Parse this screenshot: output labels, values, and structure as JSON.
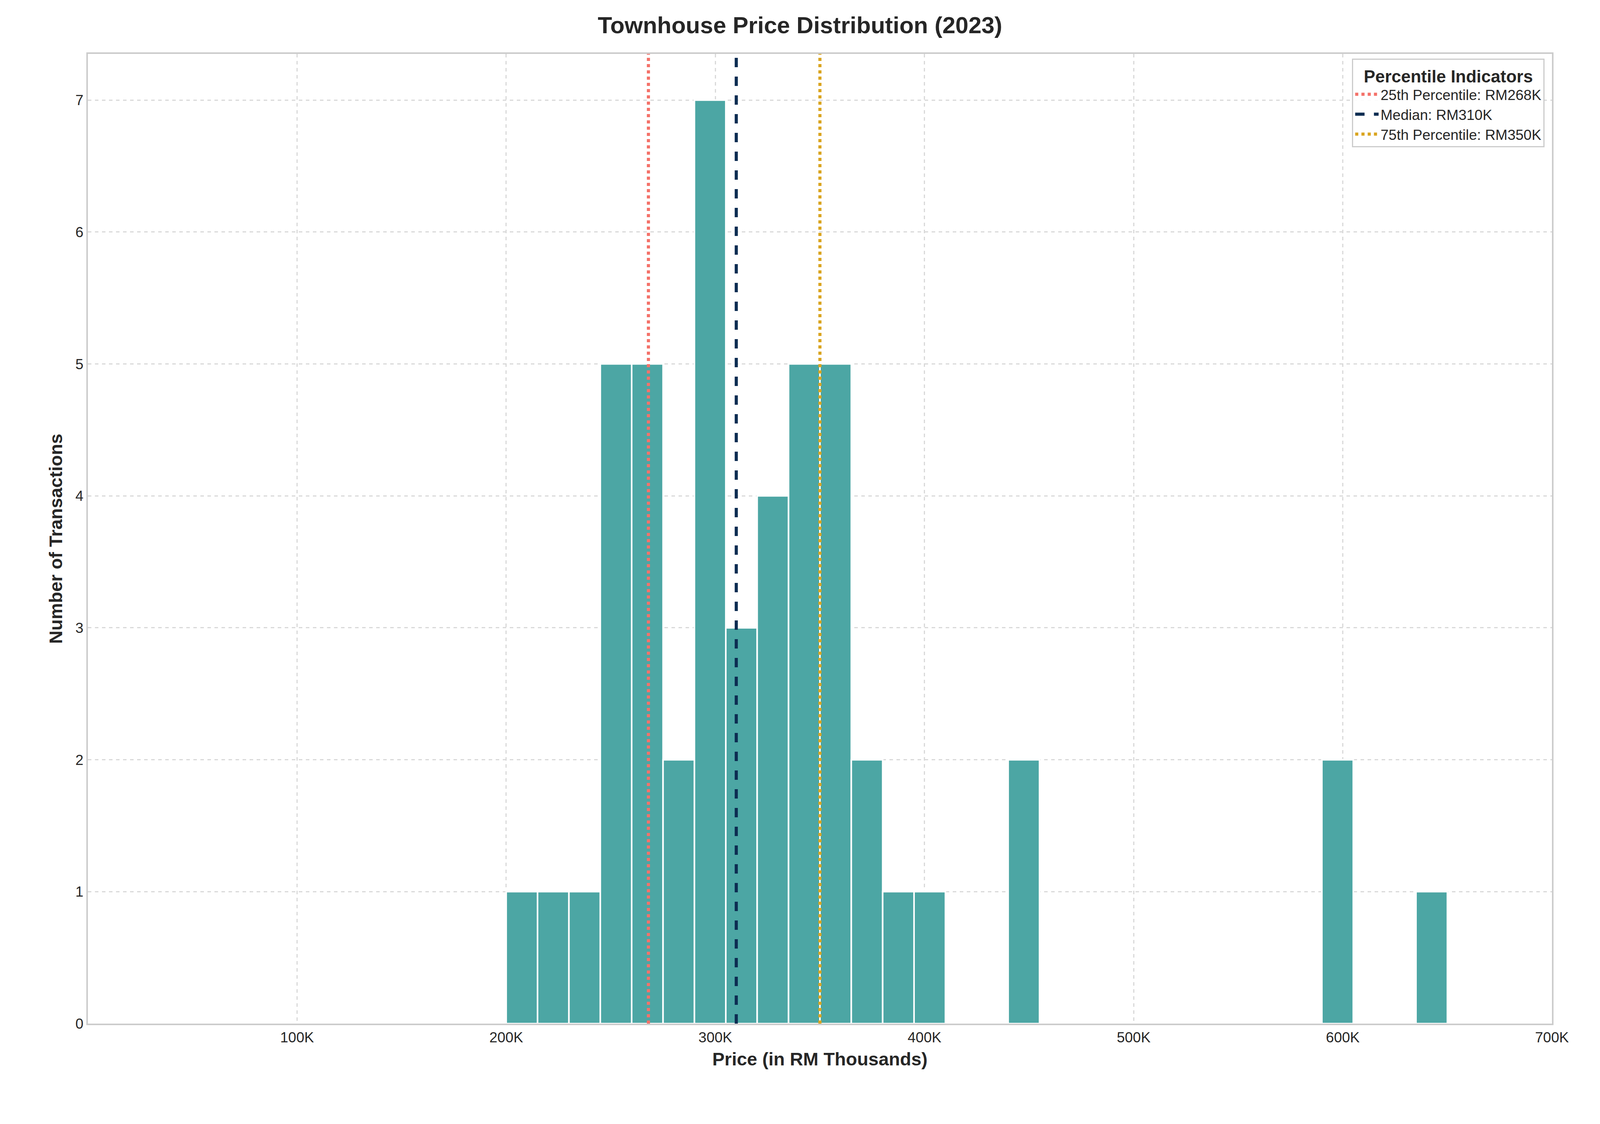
{
  "chart_data": {
    "type": "histogram",
    "title": "Townhouse Price Distribution (2023)",
    "x_label": "Price (in RM Thousands)",
    "y_label": "Number of Transactions",
    "bins": [
      200,
      215,
      230,
      245,
      260,
      275,
      290,
      305,
      320,
      335,
      350,
      365,
      380,
      395,
      410,
      425,
      440,
      455,
      470,
      485,
      500,
      515,
      530,
      545,
      560,
      575,
      590,
      605,
      620,
      635,
      650
    ],
    "values": [
      1,
      1,
      1,
      5,
      5,
      2,
      7,
      3,
      4,
      5,
      5,
      2,
      1,
      1,
      0,
      0,
      2,
      0,
      0,
      0,
      0,
      0,
      0,
      0,
      0,
      0,
      2,
      0,
      0,
      1
    ],
    "color": "#4ca6a4",
    "xlim": [
      0,
      700
    ],
    "xticks": [
      {
        "value": 100,
        "label": "100K"
      },
      {
        "value": 200,
        "label": "200K"
      },
      {
        "value": 300,
        "label": "300K"
      },
      {
        "value": 400,
        "label": "400K"
      },
      {
        "value": 500,
        "label": "500K"
      },
      {
        "value": 600,
        "label": "600K"
      },
      {
        "value": 700,
        "label": "700K"
      }
    ],
    "ylim": [
      0,
      7.35
    ],
    "yticks": [
      0,
      1,
      2,
      3,
      4,
      5,
      6,
      7
    ],
    "grid": true,
    "legend": "upper right",
    "legend_title": "Percentile Indicators",
    "reference_lines": [
      {
        "name": "25th Percentile: RM268K",
        "value": 268,
        "color": "#f4726a",
        "line_style": "dotted"
      },
      {
        "name": "Median: RM310K",
        "value": 310,
        "color": "#0d2d52",
        "line_style": "dashed"
      },
      {
        "name": "75th Percentile: RM350K",
        "value": 350,
        "color": "#daa520",
        "line_style": "dotted"
      }
    ]
  }
}
